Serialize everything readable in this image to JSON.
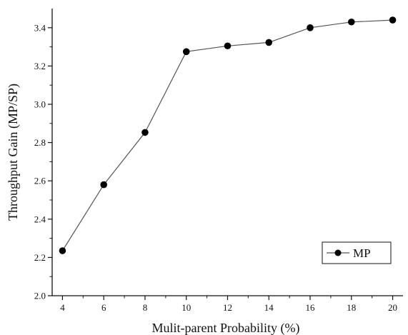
{
  "chart_data": {
    "type": "line",
    "title": "",
    "xlabel": "Mulit-parent Probability (%)",
    "ylabel": "Throughput Gain (MP/SP)",
    "xlim": [
      3.5,
      20.5
    ],
    "ylim": [
      2.0,
      3.5
    ],
    "x_ticks": [
      4,
      6,
      8,
      10,
      12,
      14,
      16,
      18,
      20
    ],
    "y_ticks": [
      2.0,
      2.2,
      2.4,
      2.6,
      2.8,
      3.0,
      3.2,
      3.4
    ],
    "grid": false,
    "legend_position": "bottom-right",
    "series": [
      {
        "name": "MP",
        "color": "#000000",
        "marker": "circle",
        "x": [
          4,
          6,
          8,
          10,
          12,
          14,
          16,
          18,
          20
        ],
        "y": [
          2.235,
          2.58,
          2.853,
          3.275,
          3.305,
          3.323,
          3.4,
          3.43,
          3.44
        ]
      }
    ]
  }
}
